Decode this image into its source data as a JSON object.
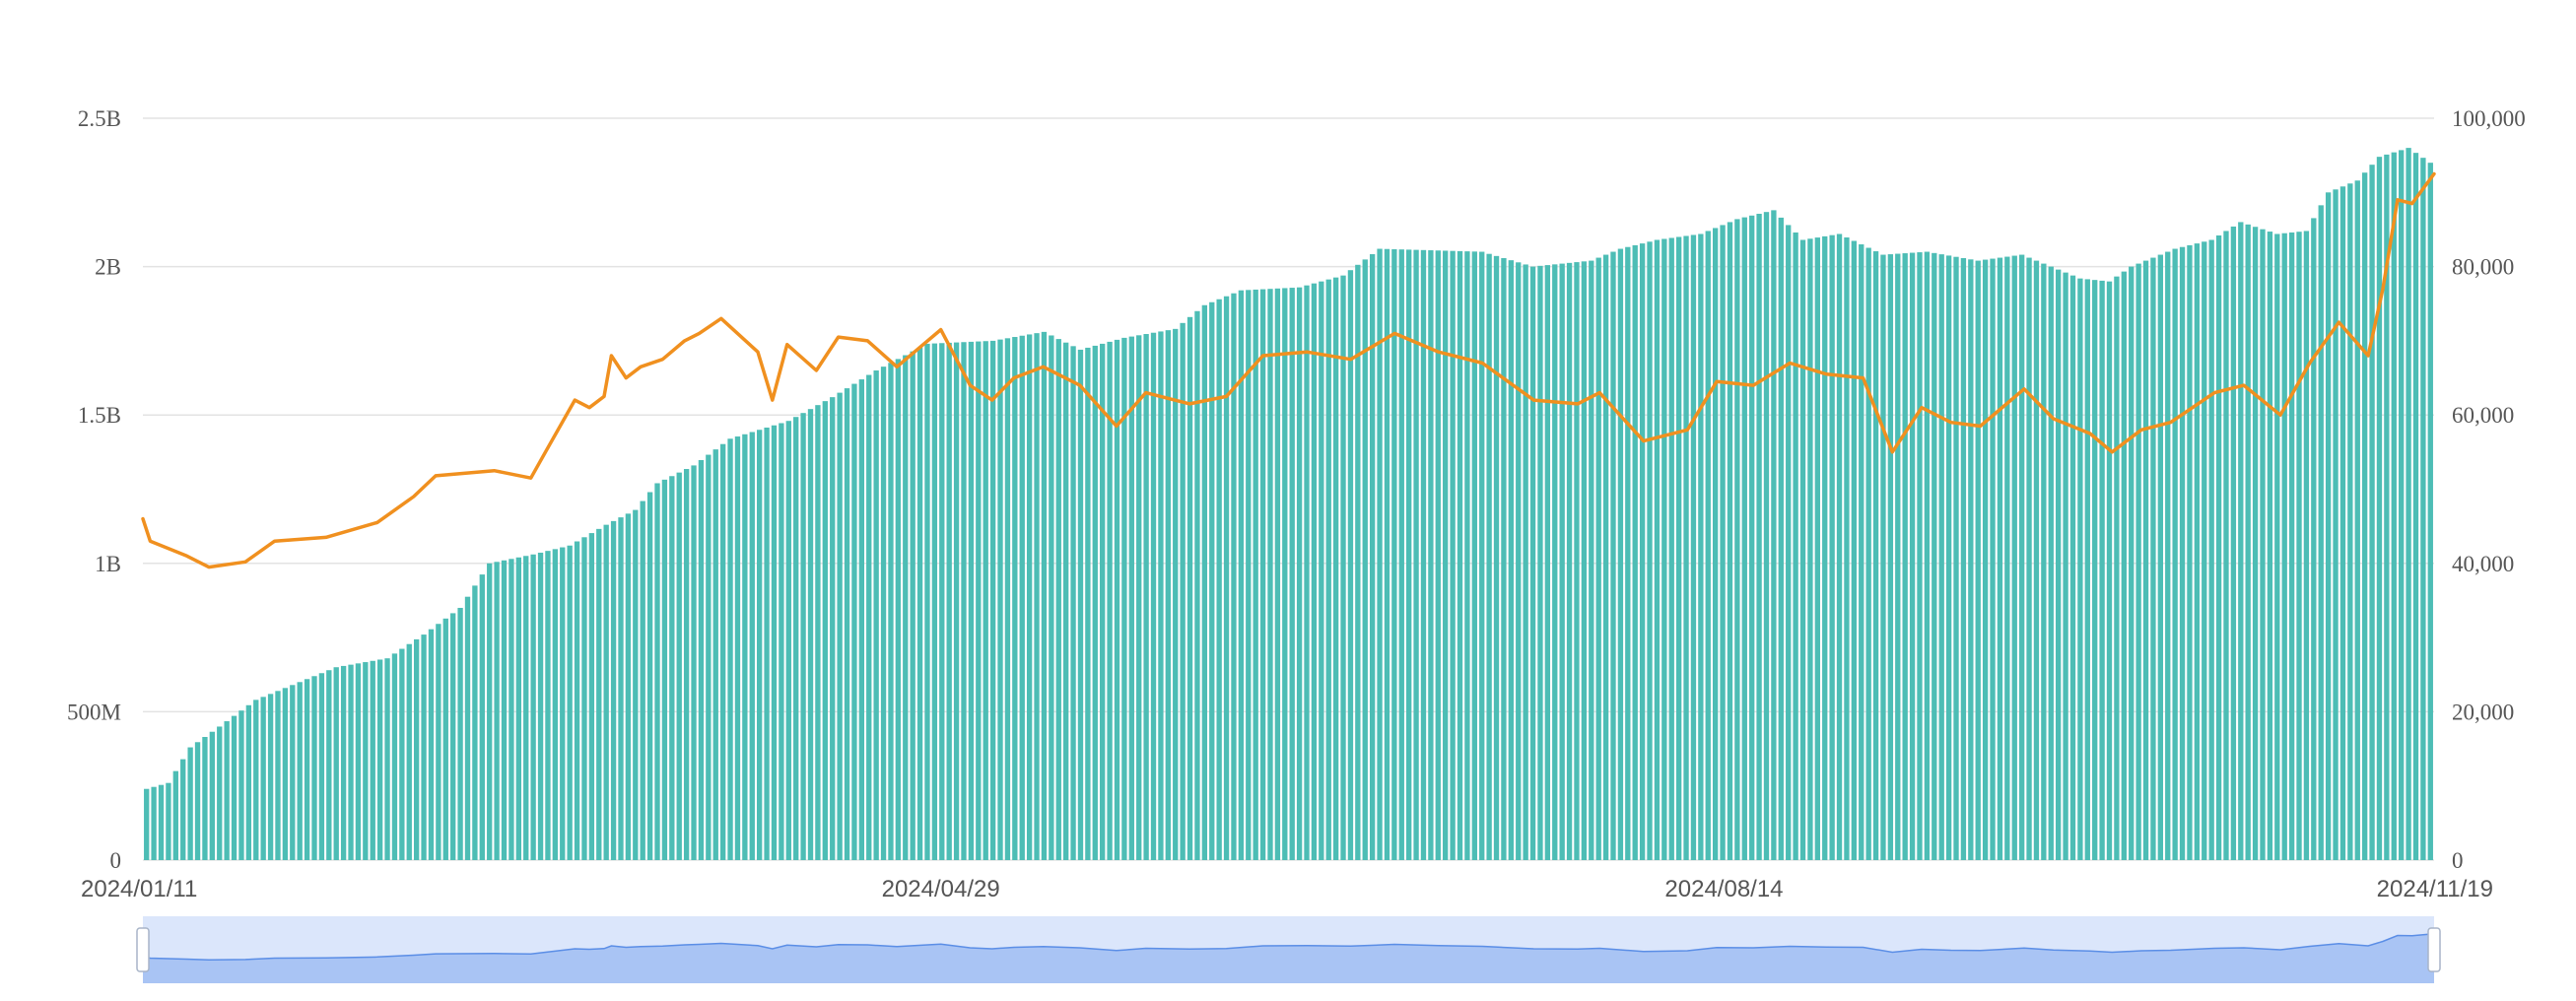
{
  "chart_data": {
    "type": "bar",
    "title": "",
    "legend": "none",
    "grid": true,
    "x_range": [
      "2024/01/11",
      "2024/11/19"
    ],
    "x_tick_labels": [
      "2024/01/11",
      "2024/04/29",
      "2024/08/14",
      "2024/11/19"
    ],
    "y_left": {
      "range": [
        0,
        2500000000
      ],
      "tick_values": [
        0,
        500000000,
        1000000000,
        1500000000,
        2000000000,
        2500000000
      ],
      "tick_labels": [
        "0",
        "500M",
        "1B",
        "1.5B",
        "2B",
        "2.5B"
      ]
    },
    "y_right": {
      "range": [
        0,
        100000
      ],
      "tick_values": [
        0,
        20000,
        40000,
        60000,
        80000,
        100000
      ],
      "tick_labels": [
        "0",
        "20,000",
        "40,000",
        "60,000",
        "80,000",
        "100,000"
      ]
    },
    "colors": {
      "bars": "#4dbdb5",
      "line": "#f0901f",
      "grid": "#e3e3e3",
      "slider_fill": "#dbe6fb",
      "slider_area": "#a9c4f4",
      "slider_line": "#5b8ee6"
    },
    "series": [
      {
        "type": "bar",
        "axis": "left",
        "keyframes": [
          [
            "2024/01/11",
            240000000
          ],
          [
            "2024/01/14",
            260000000
          ],
          [
            "2024/01/17",
            380000000
          ],
          [
            "2024/01/21",
            450000000
          ],
          [
            "2024/01/26",
            540000000
          ],
          [
            "2024/02/01",
            600000000
          ],
          [
            "2024/02/06",
            650000000
          ],
          [
            "2024/02/13",
            680000000
          ],
          [
            "2024/02/18",
            760000000
          ],
          [
            "2024/02/23",
            850000000
          ],
          [
            "2024/02/27",
            1000000000
          ],
          [
            "2024/03/04",
            1030000000
          ],
          [
            "2024/03/09",
            1060000000
          ],
          [
            "2024/03/14",
            1130000000
          ],
          [
            "2024/03/18",
            1180000000
          ],
          [
            "2024/03/21",
            1270000000
          ],
          [
            "2024/03/26",
            1330000000
          ],
          [
            "2024/03/31",
            1420000000
          ],
          [
            "2024/04/08",
            1480000000
          ],
          [
            "2024/04/14",
            1560000000
          ],
          [
            "2024/04/20",
            1650000000
          ],
          [
            "2024/04/27",
            1740000000
          ],
          [
            "2024/05/06",
            1750000000
          ],
          [
            "2024/05/13",
            1780000000
          ],
          [
            "2024/05/18",
            1720000000
          ],
          [
            "2024/05/24",
            1760000000
          ],
          [
            "2024/05/31",
            1790000000
          ],
          [
            "2024/06/04",
            1870000000
          ],
          [
            "2024/06/09",
            1920000000
          ],
          [
            "2024/06/17",
            1930000000
          ],
          [
            "2024/06/23",
            1970000000
          ],
          [
            "2024/06/28",
            2060000000
          ],
          [
            "2024/07/12",
            2050000000
          ],
          [
            "2024/07/19",
            2000000000
          ],
          [
            "2024/07/27",
            2020000000
          ],
          [
            "2024/07/31",
            2060000000
          ],
          [
            "2024/08/05",
            2090000000
          ],
          [
            "2024/08/11",
            2110000000
          ],
          [
            "2024/08/16",
            2160000000
          ],
          [
            "2024/08/21",
            2190000000
          ],
          [
            "2024/08/25",
            2090000000
          ],
          [
            "2024/08/30",
            2110000000
          ],
          [
            "2024/09/05",
            2040000000
          ],
          [
            "2024/09/11",
            2050000000
          ],
          [
            "2024/09/18",
            2020000000
          ],
          [
            "2024/09/24",
            2040000000
          ],
          [
            "2024/10/02",
            1960000000
          ],
          [
            "2024/10/06",
            1950000000
          ],
          [
            "2024/10/09",
            2000000000
          ],
          [
            "2024/10/15",
            2060000000
          ],
          [
            "2024/10/20",
            2090000000
          ],
          [
            "2024/10/24",
            2150000000
          ],
          [
            "2024/10/29",
            2110000000
          ],
          [
            "2024/11/02",
            2120000000
          ],
          [
            "2024/11/05",
            2250000000
          ],
          [
            "2024/11/09",
            2290000000
          ],
          [
            "2024/11/12",
            2370000000
          ],
          [
            "2024/11/16",
            2400000000
          ],
          [
            "2024/11/19",
            2350000000
          ]
        ]
      },
      {
        "type": "line",
        "axis": "right",
        "keyframes": [
          [
            "2024/01/11",
            46000
          ],
          [
            "2024/01/12",
            43000
          ],
          [
            "2024/01/17",
            41000
          ],
          [
            "2024/01/20",
            39500
          ],
          [
            "2024/01/25",
            40200
          ],
          [
            "2024/01/29",
            43000
          ],
          [
            "2024/02/05",
            43500
          ],
          [
            "2024/02/12",
            45500
          ],
          [
            "2024/02/17",
            49000
          ],
          [
            "2024/02/20",
            51800
          ],
          [
            "2024/02/28",
            52500
          ],
          [
            "2024/03/04",
            51500
          ],
          [
            "2024/03/06",
            55000
          ],
          [
            "2024/03/10",
            62000
          ],
          [
            "2024/03/12",
            61000
          ],
          [
            "2024/03/14",
            62500
          ],
          [
            "2024/03/15",
            68000
          ],
          [
            "2024/03/17",
            65000
          ],
          [
            "2024/03/19",
            66500
          ],
          [
            "2024/03/22",
            67500
          ],
          [
            "2024/03/25",
            70000
          ],
          [
            "2024/03/27",
            71000
          ],
          [
            "2024/03/30",
            73000
          ],
          [
            "2024/04/04",
            68500
          ],
          [
            "2024/04/06",
            62000
          ],
          [
            "2024/04/08",
            69500
          ],
          [
            "2024/04/12",
            66000
          ],
          [
            "2024/04/15",
            70500
          ],
          [
            "2024/04/19",
            70000
          ],
          [
            "2024/04/23",
            66500
          ],
          [
            "2024/04/26",
            69000
          ],
          [
            "2024/04/29",
            71500
          ],
          [
            "2024/05/03",
            64000
          ],
          [
            "2024/05/06",
            62000
          ],
          [
            "2024/05/09",
            65000
          ],
          [
            "2024/05/13",
            66500
          ],
          [
            "2024/05/18",
            64000
          ],
          [
            "2024/05/23",
            58500
          ],
          [
            "2024/05/27",
            63000
          ],
          [
            "2024/06/02",
            61500
          ],
          [
            "2024/06/07",
            62500
          ],
          [
            "2024/06/12",
            68000
          ],
          [
            "2024/06/18",
            68500
          ],
          [
            "2024/06/24",
            67500
          ],
          [
            "2024/06/30",
            71000
          ],
          [
            "2024/07/06",
            68500
          ],
          [
            "2024/07/12",
            67000
          ],
          [
            "2024/07/19",
            62000
          ],
          [
            "2024/07/25",
            61500
          ],
          [
            "2024/07/28",
            63000
          ],
          [
            "2024/08/03",
            56500
          ],
          [
            "2024/08/09",
            58000
          ],
          [
            "2024/08/13",
            64500
          ],
          [
            "2024/08/18",
            64000
          ],
          [
            "2024/08/23",
            67000
          ],
          [
            "2024/08/28",
            65500
          ],
          [
            "2024/09/02",
            65000
          ],
          [
            "2024/09/06",
            55000
          ],
          [
            "2024/09/10",
            61000
          ],
          [
            "2024/09/14",
            59000
          ],
          [
            "2024/09/18",
            58500
          ],
          [
            "2024/09/24",
            63500
          ],
          [
            "2024/09/28",
            59500
          ],
          [
            "2024/10/03",
            57500
          ],
          [
            "2024/10/06",
            55000
          ],
          [
            "2024/10/10",
            58000
          ],
          [
            "2024/10/14",
            59000
          ],
          [
            "2024/10/20",
            63000
          ],
          [
            "2024/10/24",
            64000
          ],
          [
            "2024/10/29",
            60000
          ],
          [
            "2024/11/02",
            67000
          ],
          [
            "2024/11/06",
            72500
          ],
          [
            "2024/11/10",
            68000
          ],
          [
            "2024/11/12",
            77000
          ],
          [
            "2024/11/14",
            89000
          ],
          [
            "2024/11/16",
            88500
          ],
          [
            "2024/11/19",
            92500
          ]
        ]
      }
    ],
    "data_zoom": {
      "start": "2024/01/11",
      "end": "2024/11/19"
    }
  }
}
